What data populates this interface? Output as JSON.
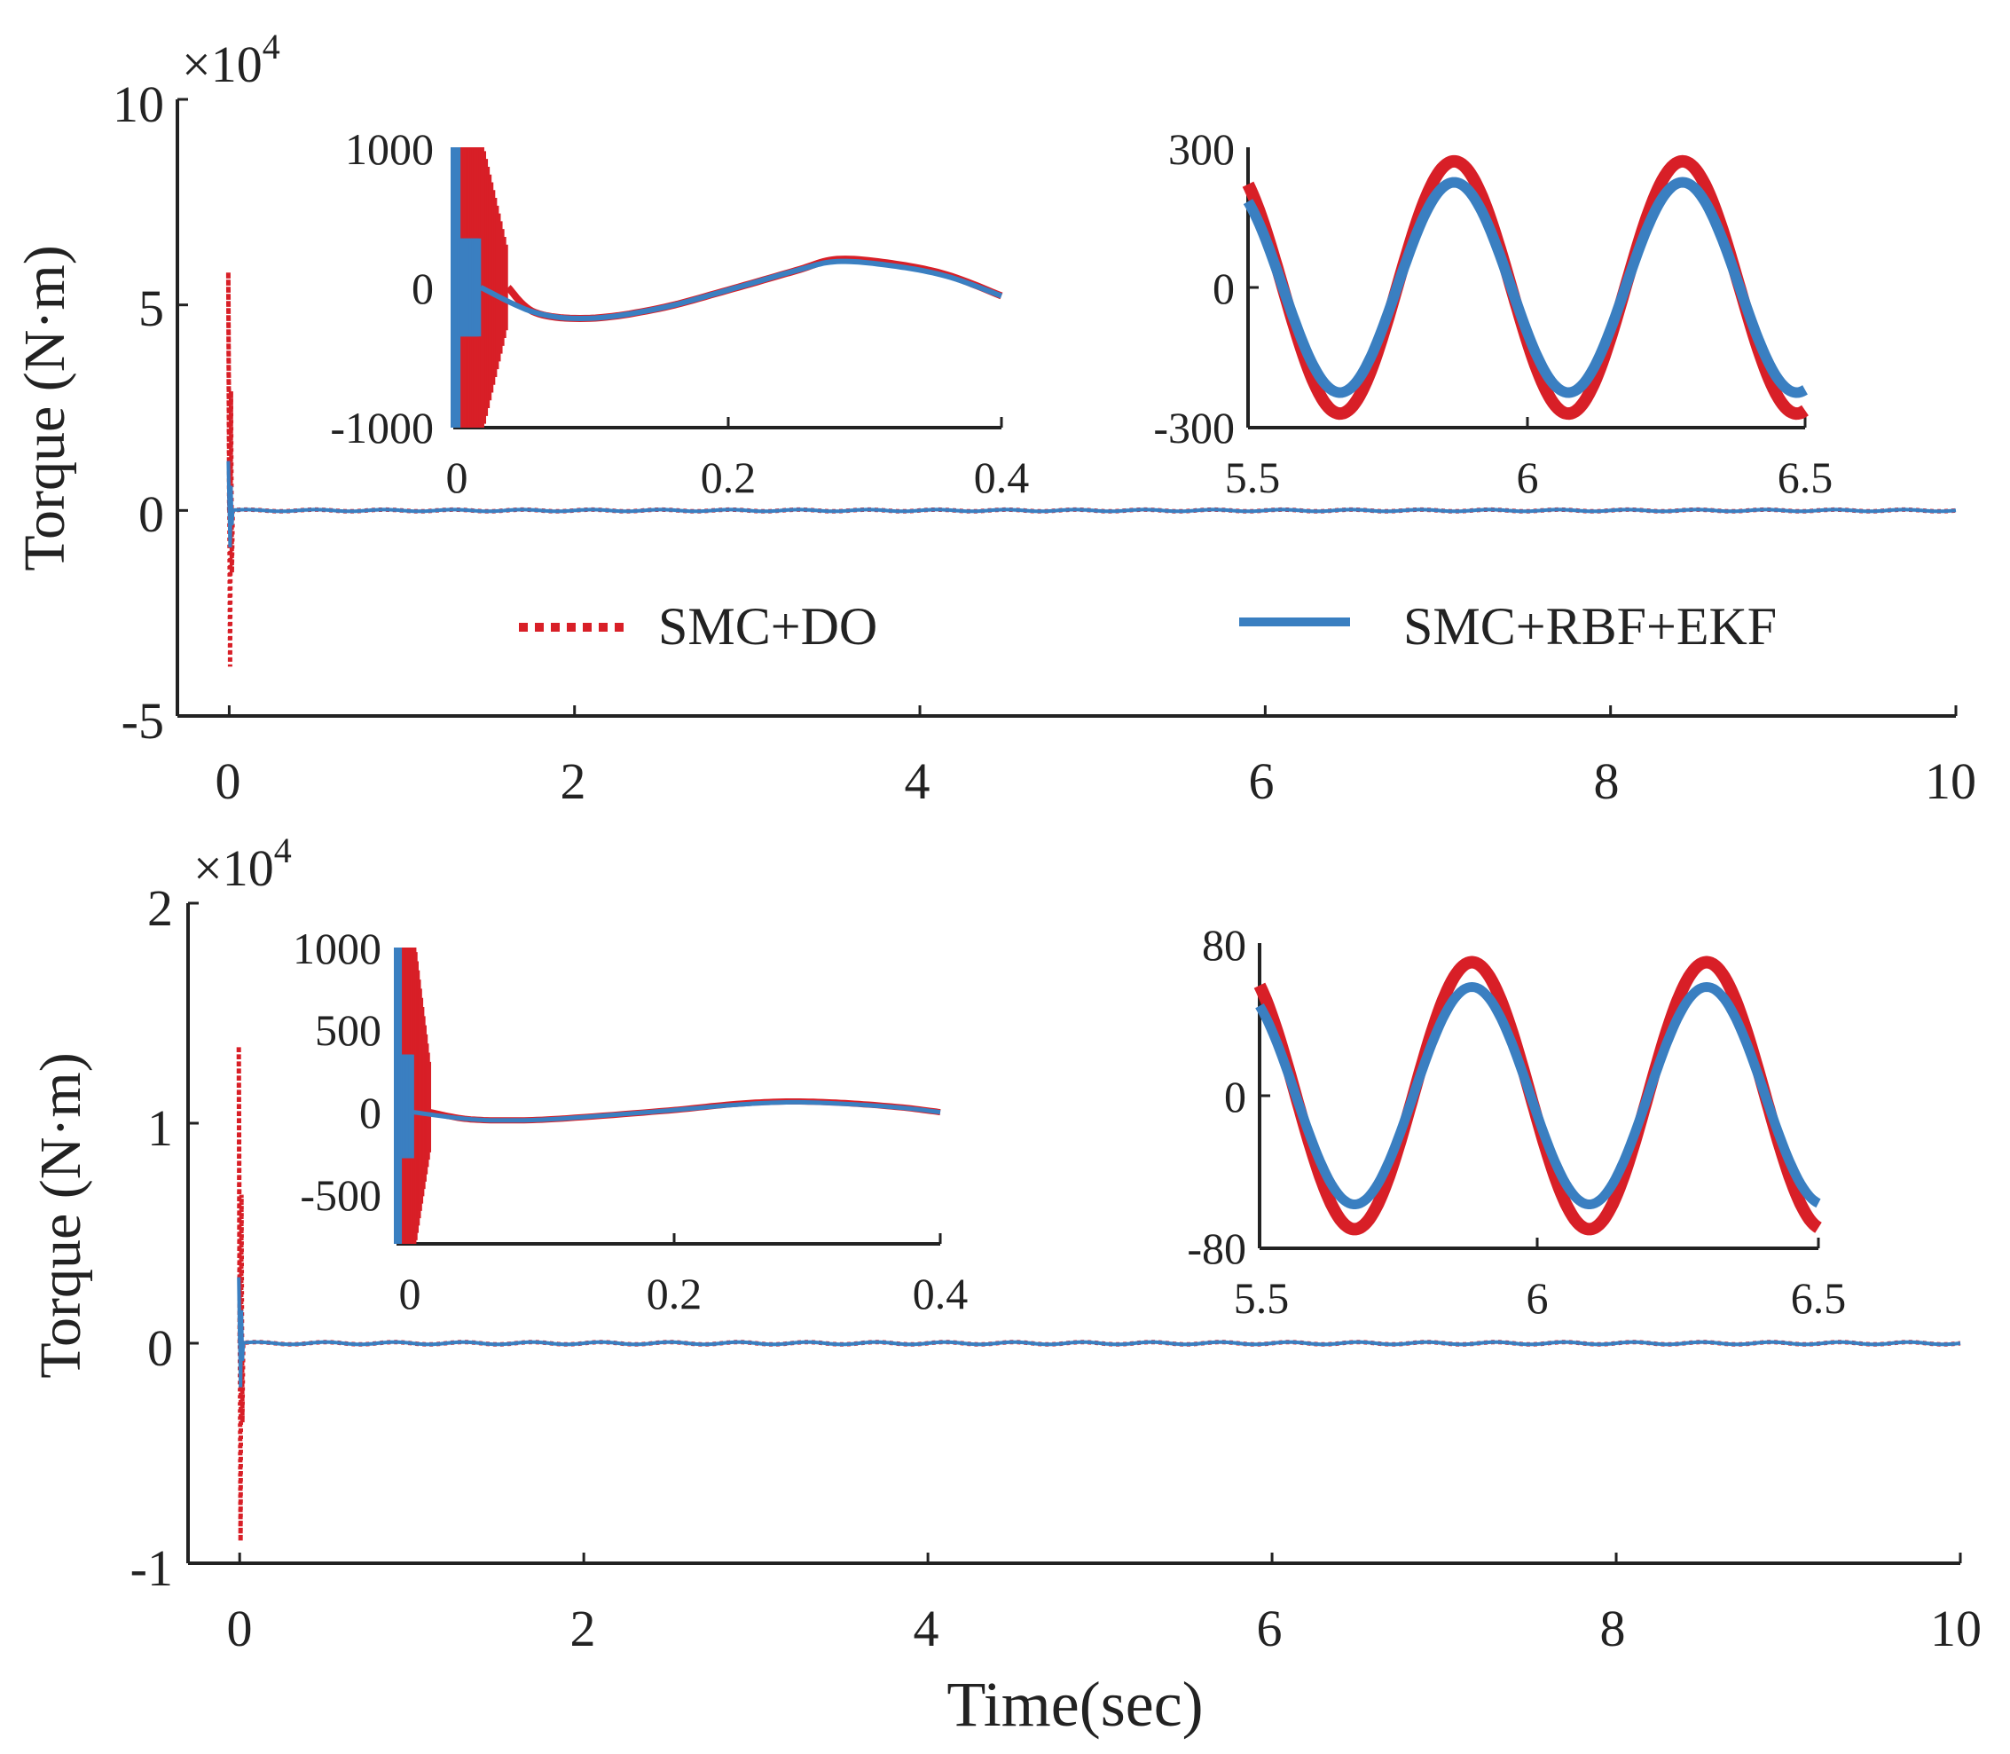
{
  "figure": {
    "shared_xlabel": "Time(sec)"
  },
  "legend": {
    "placement": "top-panel-center",
    "entries": [
      "SMC+DO",
      "SMC+RBF+EKF"
    ]
  },
  "colors": {
    "smc_do": "#d81f27",
    "smc_rbf_ekf": "#3a7fc1",
    "axis": "#222222"
  },
  "chart_data": [
    {
      "id": "top_main",
      "type": "line",
      "ylabel": "Torque (N·m)",
      "xlabel": "",
      "exponent_base": "×10",
      "exponent_power": "4",
      "xlim": [
        -0.3,
        10
      ],
      "ylim": [
        -5,
        10
      ],
      "xticks": [
        0,
        2,
        4,
        6,
        8,
        10
      ],
      "xtick_labels": [
        "0",
        "2",
        "4",
        "6",
        "8",
        "10"
      ],
      "yticks": [
        -5,
        0,
        5,
        10
      ],
      "ytick_labels": [
        "-5",
        "0",
        "5",
        "10"
      ],
      "series": [
        {
          "name": "SMC+DO",
          "style": "dotted",
          "spike_max": 5.8,
          "spike_min": -3.8,
          "steady_amplitude": 0.02,
          "period": 0.4
        },
        {
          "name": "SMC+RBF+EKF",
          "style": "solid",
          "spike_max": 1.2,
          "spike_min": -0.9,
          "steady_amplitude": 0.02,
          "period": 0.4
        }
      ]
    },
    {
      "id": "top_inset_a",
      "type": "line",
      "xlim": [
        0,
        0.4
      ],
      "ylim": [
        -1000,
        1000
      ],
      "xticks": [
        0,
        0.2,
        0.4
      ],
      "xtick_labels": [
        "0",
        "0.2",
        "0.4"
      ],
      "yticks": [
        -1000,
        0,
        1000
      ],
      "ytick_labels": [
        "-1000",
        "0",
        "1000"
      ],
      "series": [
        {
          "name": "SMC+DO",
          "chatter_until": 0.04,
          "points": [
            [
              0.06,
              -180
            ],
            [
              0.1,
              -220
            ],
            [
              0.15,
              -150
            ],
            [
              0.2,
              -20
            ],
            [
              0.25,
              120
            ],
            [
              0.28,
              200
            ],
            [
              0.32,
              170
            ],
            [
              0.36,
              90
            ],
            [
              0.4,
              -60
            ]
          ]
        },
        {
          "name": "SMC+RBF+EKF",
          "chatter_until": 0.02,
          "points": [
            [
              0.06,
              -180
            ],
            [
              0.1,
              -220
            ],
            [
              0.15,
              -150
            ],
            [
              0.2,
              -20
            ],
            [
              0.25,
              120
            ],
            [
              0.28,
              185
            ],
            [
              0.32,
              155
            ],
            [
              0.36,
              80
            ],
            [
              0.4,
              -60
            ]
          ]
        }
      ]
    },
    {
      "id": "top_inset_b",
      "type": "line",
      "xlim": [
        5.5,
        6.5
      ],
      "ylim": [
        -300,
        300
      ],
      "xticks": [
        5.5,
        6,
        6.5
      ],
      "xtick_labels": [
        "5.5",
        "6",
        "6.5"
      ],
      "yticks": [
        -300,
        0,
        300
      ],
      "ytick_labels": [
        "-300",
        "0",
        "300"
      ],
      "series": [
        {
          "name": "SMC+DO",
          "amplitude": 270,
          "period": 0.41,
          "peak_at": 5.87
        },
        {
          "name": "SMC+RBF+EKF",
          "amplitude": 225,
          "period": 0.41,
          "peak_at": 5.87
        }
      ]
    },
    {
      "id": "bottom_main",
      "type": "line",
      "ylabel": "Torque (N·m)",
      "xlabel": "Time(sec)",
      "exponent_base": "×10",
      "exponent_power": "4",
      "xlim": [
        -0.3,
        10
      ],
      "ylim": [
        -1,
        2
      ],
      "xticks": [
        0,
        2,
        4,
        6,
        8,
        10
      ],
      "xtick_labels": [
        "0",
        "2",
        "4",
        "6",
        "8",
        "10"
      ],
      "yticks": [
        -1,
        0,
        1,
        2
      ],
      "ytick_labels": [
        "-1",
        "0",
        "1",
        "2"
      ],
      "series": [
        {
          "name": "SMC+DO",
          "style": "dotted",
          "spike_max": 1.35,
          "spike_min": -0.9,
          "steady_amplitude": 0.005,
          "period": 0.4
        },
        {
          "name": "SMC+RBF+EKF",
          "style": "solid",
          "spike_max": 0.3,
          "spike_min": -0.2,
          "steady_amplitude": 0.005,
          "period": 0.4
        }
      ]
    },
    {
      "id": "bottom_inset_a",
      "type": "line",
      "xlim": [
        0,
        0.4
      ],
      "ylim": [
        -800,
        1000
      ],
      "xticks": [
        0,
        0.2,
        0.4
      ],
      "xtick_labels": [
        "0",
        "0.2",
        "0.4"
      ],
      "yticks": [
        -500,
        0,
        500,
        1000
      ],
      "ytick_labels": [
        "-500",
        "0",
        "500",
        "1000"
      ],
      "series": [
        {
          "name": "SMC+DO",
          "chatter_until": 0.025,
          "points": [
            [
              0.05,
              -40
            ],
            [
              0.08,
              -50
            ],
            [
              0.12,
              -40
            ],
            [
              0.2,
              10
            ],
            [
              0.25,
              50
            ],
            [
              0.29,
              65
            ],
            [
              0.33,
              55
            ],
            [
              0.37,
              30
            ],
            [
              0.4,
              0
            ]
          ]
        },
        {
          "name": "SMC+RBF+EKF",
          "chatter_until": 0.012,
          "points": [
            [
              0.05,
              -40
            ],
            [
              0.08,
              -50
            ],
            [
              0.12,
              -40
            ],
            [
              0.2,
              10
            ],
            [
              0.25,
              45
            ],
            [
              0.29,
              60
            ],
            [
              0.33,
              50
            ],
            [
              0.37,
              28
            ],
            [
              0.4,
              0
            ]
          ]
        }
      ]
    },
    {
      "id": "bottom_inset_b",
      "type": "line",
      "xlim": [
        5.5,
        6.5
      ],
      "ylim": [
        -80,
        80
      ],
      "xticks": [
        5.5,
        6,
        6.5
      ],
      "xtick_labels": [
        "5.5",
        "6",
        "6.5"
      ],
      "yticks": [
        -80,
        0,
        80
      ],
      "ytick_labels": [
        "-80",
        "0",
        "80"
      ],
      "series": [
        {
          "name": "SMC+DO",
          "amplitude": 70,
          "period": 0.42,
          "peak_at": 5.88
        },
        {
          "name": "SMC+RBF+EKF",
          "amplitude": 57,
          "period": 0.42,
          "peak_at": 5.88
        }
      ]
    }
  ]
}
